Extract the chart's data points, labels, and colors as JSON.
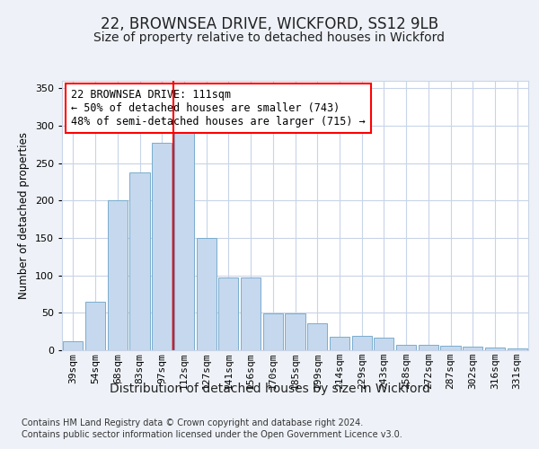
{
  "title1": "22, BROWNSEA DRIVE, WICKFORD, SS12 9LB",
  "title2": "Size of property relative to detached houses in Wickford",
  "xlabel": "Distribution of detached houses by size in Wickford",
  "ylabel": "Number of detached properties",
  "categories": [
    "39sqm",
    "54sqm",
    "68sqm",
    "83sqm",
    "97sqm",
    "112sqm",
    "127sqm",
    "141sqm",
    "156sqm",
    "170sqm",
    "185sqm",
    "199sqm",
    "214sqm",
    "229sqm",
    "243sqm",
    "258sqm",
    "272sqm",
    "287sqm",
    "302sqm",
    "316sqm",
    "331sqm"
  ],
  "values": [
    12,
    65,
    200,
    238,
    277,
    290,
    150,
    97,
    97,
    49,
    49,
    36,
    18,
    19,
    17,
    7,
    7,
    6,
    5,
    4,
    3
  ],
  "bar_color": "#c5d8ed",
  "bar_edge_color": "#7aadce",
  "red_line_index": 5,
  "annotation_line1": "22 BROWNSEA DRIVE: 111sqm",
  "annotation_line2": "← 50% of detached houses are smaller (743)",
  "annotation_line3": "48% of semi-detached houses are larger (715) →",
  "footnote1": "Contains HM Land Registry data © Crown copyright and database right 2024.",
  "footnote2": "Contains public sector information licensed under the Open Government Licence v3.0.",
  "ylim": [
    0,
    360
  ],
  "yticks": [
    0,
    50,
    100,
    150,
    200,
    250,
    300,
    350
  ],
  "bg_color": "#eef2f8",
  "plot_bg_color": "#ffffff",
  "grid_color": "#c8d4e8",
  "title1_fontsize": 12,
  "title2_fontsize": 10,
  "annotation_fontsize": 8.5,
  "tick_fontsize": 8,
  "xlabel_fontsize": 10,
  "ylabel_fontsize": 8.5
}
